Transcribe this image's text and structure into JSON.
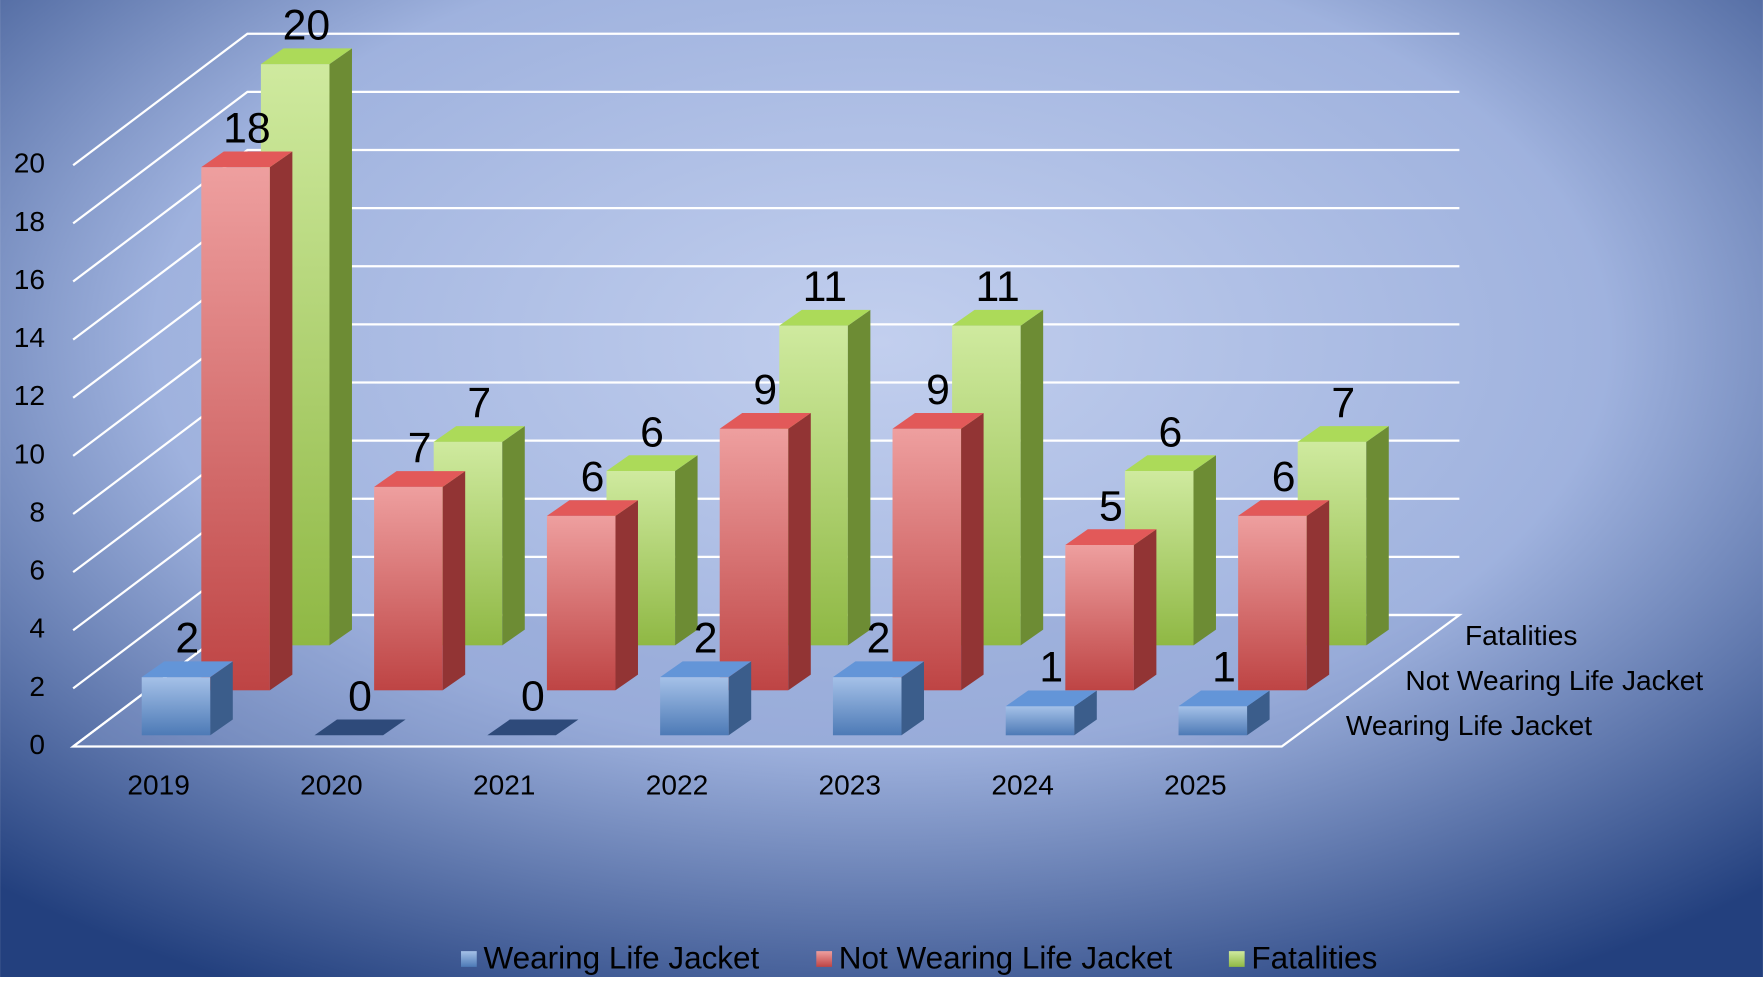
{
  "chart_data": {
    "type": "bar3d",
    "categories": [
      "2019",
      "2020",
      "2021",
      "2022",
      "2023",
      "2024",
      "2025"
    ],
    "series": [
      {
        "name": "Wearing Life Jacket",
        "color": "#5b8fd6",
        "values": [
          2,
          0,
          0,
          2,
          2,
          1,
          1
        ]
      },
      {
        "name": "Not Wearing Life Jacket",
        "color": "#e05050",
        "values": [
          18,
          7,
          6,
          9,
          9,
          5,
          6
        ]
      },
      {
        "name": "Fatalities",
        "color": "#a8d850",
        "values": [
          20,
          7,
          6,
          11,
          11,
          6,
          7
        ]
      }
    ],
    "ylim": [
      0,
      20
    ],
    "yticks": [
      0,
      2,
      4,
      6,
      8,
      10,
      12,
      14,
      16,
      18,
      20
    ],
    "grid": true,
    "legend": "bottom"
  }
}
